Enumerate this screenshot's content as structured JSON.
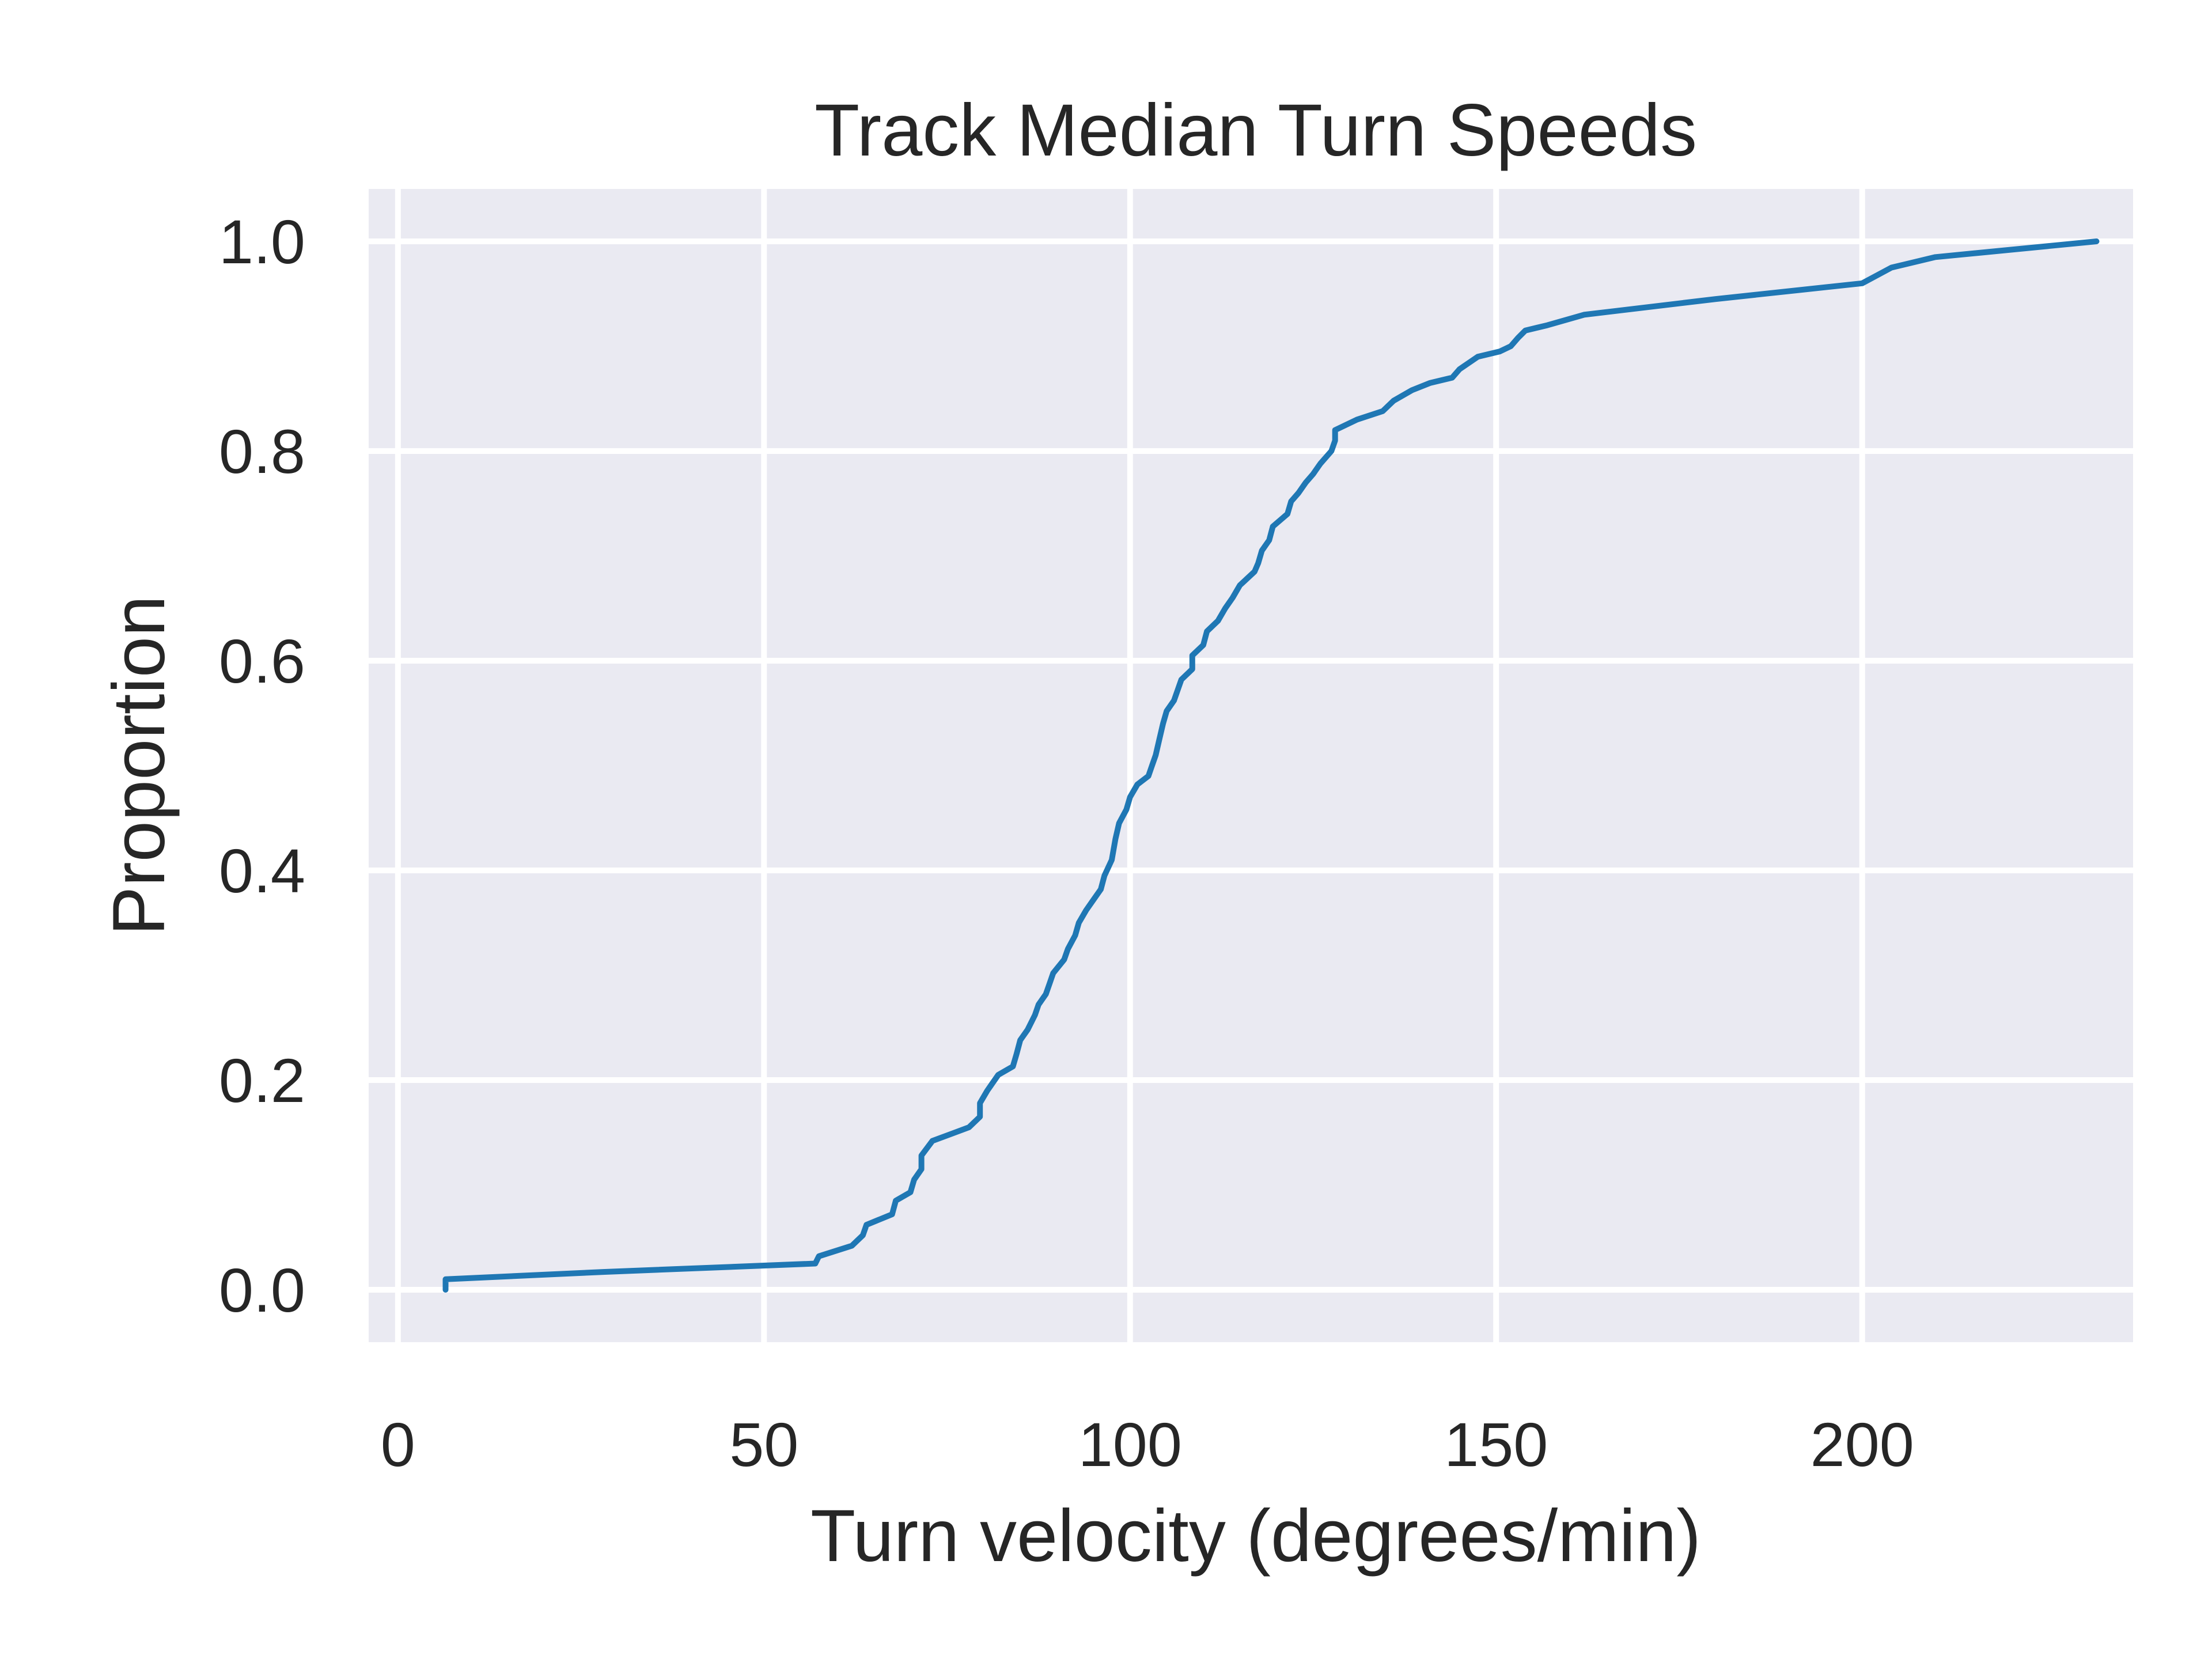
{
  "colors": {
    "background": "#ffffff",
    "plot_background": "#eaeaf2",
    "grid": "#ffffff",
    "line": "#1f77b4",
    "text": "#262626"
  },
  "chart_data": {
    "type": "line",
    "title": "Track Median Turn Speeds",
    "xlabel": "Turn velocity (degrees/min)",
    "ylabel": "Proportion",
    "xlim": [
      -4,
      237
    ],
    "ylim": [
      -0.05,
      1.05
    ],
    "x_ticks": [
      0,
      50,
      100,
      150,
      200
    ],
    "x_tick_labels": [
      "0",
      "50",
      "100",
      "150",
      "200"
    ],
    "y_ticks": [
      0.0,
      0.2,
      0.4,
      0.6,
      0.8,
      1.0
    ],
    "y_tick_labels": [
      "0.0",
      "0.2",
      "0.4",
      "0.6",
      "0.8",
      "1.0"
    ],
    "grid": true,
    "legend": "none",
    "series": [
      {
        "x": [
          6.5,
          6.5,
          28,
          57,
          57.5,
          62,
          63.5,
          64,
          67.5,
          68,
          70,
          70.5,
          71.5,
          71.5,
          73,
          78,
          79.5,
          79.5,
          80.5,
          81,
          82,
          84,
          84.5,
          85,
          86,
          87,
          87.5,
          88.5,
          89,
          89.5,
          91,
          91.5,
          92.5,
          93,
          94,
          95,
          96,
          96.5,
          97.5,
          98,
          98.5,
          99.5,
          100,
          101,
          102.5,
          103,
          103.5,
          104,
          104.5,
          105,
          106,
          106.5,
          107,
          108.5,
          108.5,
          110,
          110.5,
          112,
          113,
          114,
          115,
          117,
          117.5,
          118,
          119,
          119.5,
          121.5,
          122,
          123,
          124,
          125,
          126,
          127.5,
          128,
          128,
          131,
          134.5,
          136,
          138.5,
          141,
          144,
          145,
          147.5,
          150.5,
          152,
          153,
          154,
          157,
          162,
          180,
          200,
          204,
          210,
          232
        ],
        "y": [
          0.0,
          0.01,
          0.017,
          0.025,
          0.032,
          0.042,
          0.052,
          0.062,
          0.072,
          0.085,
          0.093,
          0.105,
          0.115,
          0.128,
          0.142,
          0.155,
          0.165,
          0.178,
          0.19,
          0.195,
          0.205,
          0.213,
          0.225,
          0.238,
          0.248,
          0.262,
          0.272,
          0.282,
          0.292,
          0.302,
          0.315,
          0.325,
          0.338,
          0.35,
          0.362,
          0.372,
          0.382,
          0.395,
          0.41,
          0.43,
          0.445,
          0.458,
          0.47,
          0.482,
          0.49,
          0.5,
          0.51,
          0.525,
          0.54,
          0.552,
          0.562,
          0.572,
          0.582,
          0.592,
          0.605,
          0.615,
          0.628,
          0.638,
          0.65,
          0.66,
          0.672,
          0.685,
          0.693,
          0.705,
          0.715,
          0.728,
          0.74,
          0.752,
          0.76,
          0.77,
          0.778,
          0.788,
          0.8,
          0.81,
          0.82,
          0.83,
          0.838,
          0.848,
          0.858,
          0.865,
          0.87,
          0.878,
          0.89,
          0.895,
          0.9,
          0.908,
          0.915,
          0.92,
          0.93,
          0.945,
          0.96,
          0.975,
          0.985,
          1.0
        ]
      }
    ]
  }
}
